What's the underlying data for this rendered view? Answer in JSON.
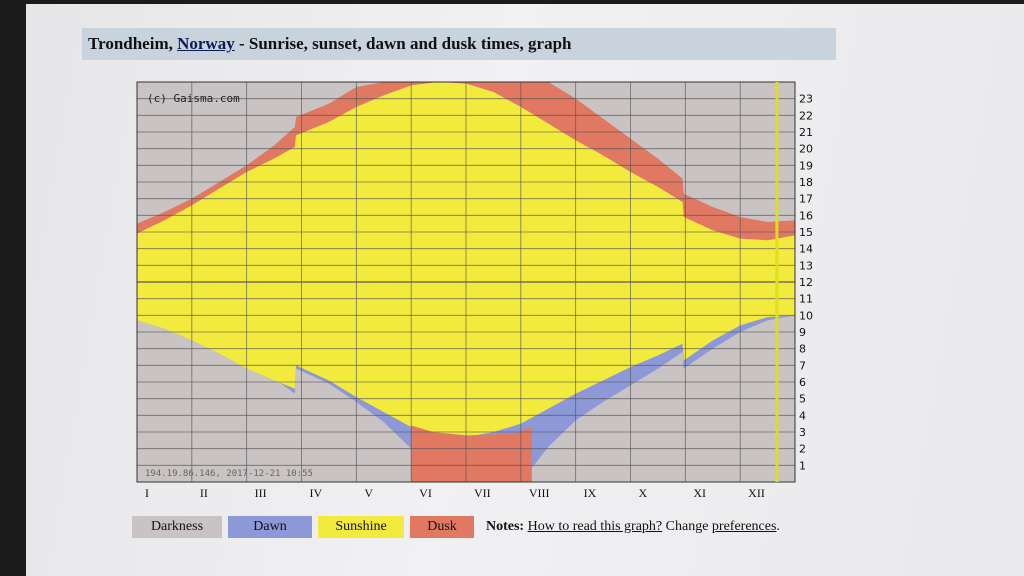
{
  "title": {
    "city": "Trondheim",
    "sep": ",",
    "country": "Norway",
    "rest": "- Sunrise, sunset, dawn and dusk times, graph"
  },
  "legend": [
    {
      "label": "Darkness",
      "color": "#c9c3c3"
    },
    {
      "label": "Dawn",
      "color": "#8d98d8"
    },
    {
      "label": "Sunshine",
      "color": "#f2ea3c"
    },
    {
      "label": "Dusk",
      "color": "#e07862"
    }
  ],
  "notes": {
    "label": "Notes:",
    "link1": "How to read this graph?",
    "text": "Change",
    "link2": "preferences",
    "end": "."
  },
  "chart_data": {
    "type": "area",
    "copyright": "(c) Gaisma.com",
    "footer": "194.19.86.146, 2017-12-21 10:55",
    "months": [
      "I",
      "II",
      "III",
      "IV",
      "V",
      "VI",
      "VII",
      "VIII",
      "IX",
      "X",
      "XI",
      "XII"
    ],
    "y_ticks": [
      "1",
      "2",
      "3",
      "4",
      "5",
      "6",
      "7",
      "8",
      "9",
      "10",
      "11",
      "12",
      "13",
      "14",
      "15",
      "16",
      "17",
      "18",
      "19",
      "20",
      "21",
      "22",
      "23"
    ],
    "ylim": [
      0,
      24
    ],
    "xlim": [
      0,
      12
    ],
    "grid": true,
    "current_date_marker": 11.67,
    "colors": {
      "darkness": "#c9c3c3",
      "dawn": "#8d98d8",
      "sunshine": "#f2ea3c",
      "dusk": "#e07862",
      "grid": "#555555",
      "marker": "#dede1a"
    },
    "x": [
      0,
      0.5,
      1,
      1.5,
      2,
      2.5,
      2.88,
      2.9,
      3.5,
      4,
      4.5,
      5,
      5.5,
      6,
      6.5,
      7,
      7.5,
      8,
      8.5,
      9,
      9.5,
      9.95,
      9.97,
      10.5,
      11,
      11.5,
      12
    ],
    "dawn_start": [
      10.0,
      9.6,
      9.0,
      8.2,
      7.3,
      6.2,
      5.3,
      6.8,
      5.9,
      4.8,
      3.6,
      2.0,
      0,
      0,
      0,
      0,
      2.1,
      3.7,
      4.8,
      5.8,
      6.8,
      7.8,
      6.8,
      8.0,
      9.0,
      9.7,
      10.0
    ],
    "sunrise": [
      9.7,
      9.2,
      8.5,
      7.7,
      6.8,
      6.1,
      5.6,
      7.0,
      6.1,
      5.1,
      4.2,
      3.3,
      2.8,
      2.7,
      3.0,
      3.5,
      4.4,
      5.3,
      6.1,
      6.9,
      7.6,
      8.3,
      7.3,
      8.5,
      9.4,
      9.9,
      10.0
    ],
    "sunset": [
      14.9,
      15.7,
      16.6,
      17.6,
      18.6,
      19.4,
      20.1,
      20.8,
      21.6,
      22.5,
      23.2,
      23.8,
      24.0,
      23.9,
      23.4,
      22.5,
      21.5,
      20.5,
      19.6,
      18.6,
      17.7,
      16.8,
      15.9,
      15.1,
      14.6,
      14.5,
      14.8
    ]
  }
}
